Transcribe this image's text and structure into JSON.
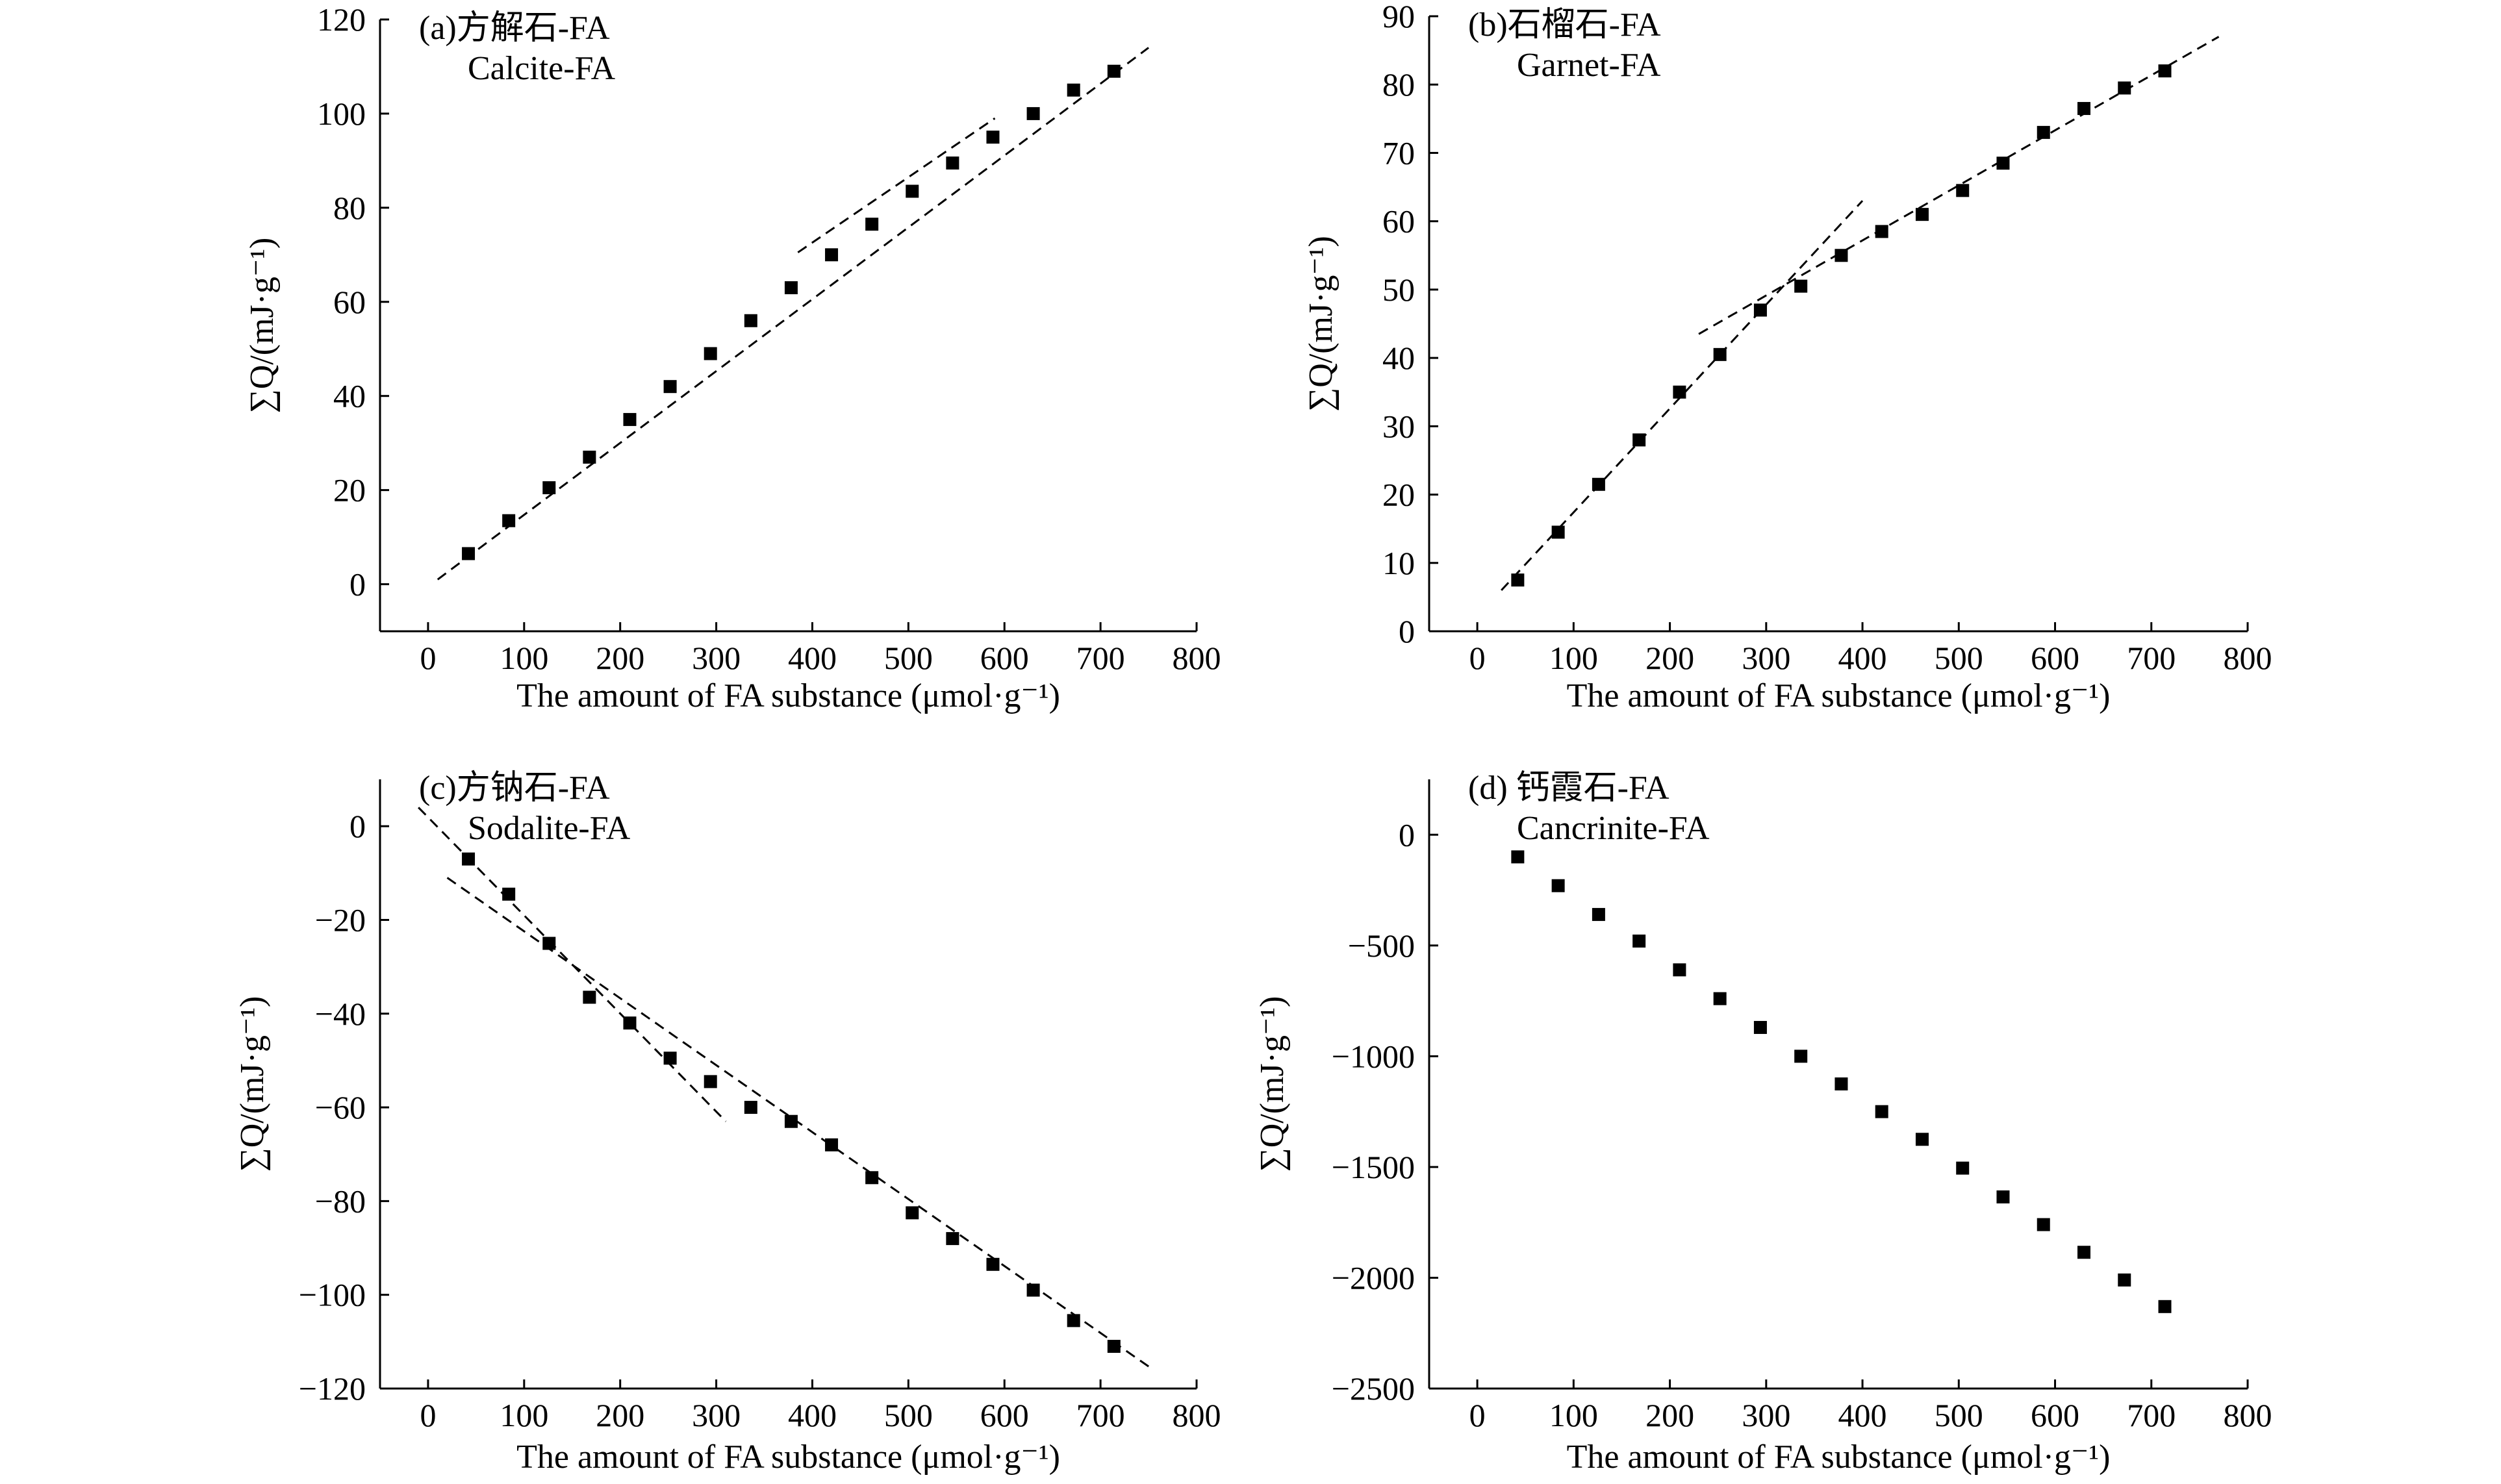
{
  "chart_data": [
    {
      "type": "scatter",
      "panel_label": "(a)方解石-FA",
      "panel_sublabel": "Calcite-FA",
      "xlabel": "The amount of FA substance (μmol·g⁻¹)",
      "ylabel": "∑Q/(mJ·g⁻¹)",
      "xlim": [
        -50,
        800
      ],
      "ylim": [
        -10,
        120
      ],
      "xticks": [
        0,
        100,
        200,
        300,
        400,
        500,
        600,
        700,
        800
      ],
      "yticks": [
        0,
        20,
        40,
        60,
        80,
        100,
        120
      ],
      "x": [
        42,
        84,
        126,
        168,
        210,
        252,
        294,
        336,
        378,
        420,
        462,
        504,
        546,
        588,
        630,
        672,
        714
      ],
      "y": [
        6.5,
        13.5,
        20.5,
        27,
        35,
        42,
        49,
        56,
        63,
        70,
        76.5,
        83.5,
        89.5,
        95,
        100,
        105,
        109
      ],
      "fit_lines": [
        {
          "x": [
            10,
            750
          ],
          "y": [
            1,
            114
          ]
        },
        {
          "x": [
            385,
            590
          ],
          "y": [
            70.5,
            99
          ]
        }
      ]
    },
    {
      "type": "scatter",
      "panel_label": "(b)石榴石-FA",
      "panel_sublabel": "Garnet-FA",
      "xlabel": "The amount of FA substance (μmol·g⁻¹)",
      "ylabel": "∑Q/(mJ·g⁻¹)",
      "xlim": [
        -50,
        800
      ],
      "ylim": [
        0,
        90
      ],
      "xticks": [
        0,
        100,
        200,
        300,
        400,
        500,
        600,
        700,
        800
      ],
      "yticks": [
        0,
        10,
        20,
        30,
        40,
        50,
        60,
        70,
        80,
        90
      ],
      "x": [
        42,
        84,
        126,
        168,
        210,
        252,
        294,
        336,
        378,
        420,
        462,
        504,
        546,
        588,
        630,
        672,
        714
      ],
      "y": [
        7.5,
        14.5,
        21.5,
        28,
        35,
        40.5,
        47,
        50.5,
        55,
        58.5,
        61,
        64.5,
        68.5,
        73,
        76.5,
        79.5,
        82
      ],
      "fit_lines": [
        {
          "x": [
            25,
            400
          ],
          "y": [
            6,
            63
          ]
        },
        {
          "x": [
            230,
            770
          ],
          "y": [
            43.5,
            87
          ]
        }
      ]
    },
    {
      "type": "scatter",
      "panel_label": "(c)方钠石-FA",
      "panel_sublabel": "Sodalite-FA",
      "xlabel": "The amount of FA substance (μmol·g⁻¹)",
      "ylabel": "∑Q/(mJ·g⁻¹)",
      "xlim": [
        -50,
        800
      ],
      "ylim": [
        -120,
        10
      ],
      "xticks": [
        0,
        100,
        200,
        300,
        400,
        500,
        600,
        700,
        800
      ],
      "yticks": [
        0,
        -20,
        -40,
        -60,
        -80,
        -100,
        -120
      ],
      "x": [
        42,
        84,
        126,
        168,
        210,
        252,
        294,
        336,
        378,
        420,
        462,
        504,
        546,
        588,
        630,
        672,
        714
      ],
      "y": [
        -7,
        -14.5,
        -25,
        -36.5,
        -42,
        -49.5,
        -54.5,
        -60,
        -63,
        -68,
        -75,
        -82.5,
        -88,
        -93.5,
        -99,
        -105.5,
        -111
      ],
      "fit_lines": [
        {
          "x": [
            -10,
            310
          ],
          "y": [
            4,
            -63
          ]
        },
        {
          "x": [
            20,
            755
          ],
          "y": [
            -11,
            -116
          ]
        }
      ]
    },
    {
      "type": "scatter",
      "panel_label": "(d) 钙霞石-FA",
      "panel_sublabel": "Cancrinite-FA",
      "xlabel": "The amount of FA substance (μmol·g⁻¹)",
      "ylabel": "∑Q/(mJ·g⁻¹)",
      "xlim": [
        -50,
        800
      ],
      "ylim": [
        -2500,
        250
      ],
      "xticks": [
        0,
        100,
        200,
        300,
        400,
        500,
        600,
        700,
        800
      ],
      "yticks": [
        0,
        -500,
        -1000,
        -1500,
        -2000,
        -2500
      ],
      "x": [
        42,
        84,
        126,
        168,
        210,
        252,
        294,
        336,
        378,
        420,
        462,
        504,
        546,
        588,
        630,
        672,
        714
      ],
      "y": [
        -100,
        -230,
        -360,
        -480,
        -610,
        -740,
        -870,
        -1000,
        -1125,
        -1250,
        -1375,
        -1505,
        -1635,
        -1760,
        -1885,
        -2010,
        -2130
      ],
      "fit_lines": []
    }
  ]
}
